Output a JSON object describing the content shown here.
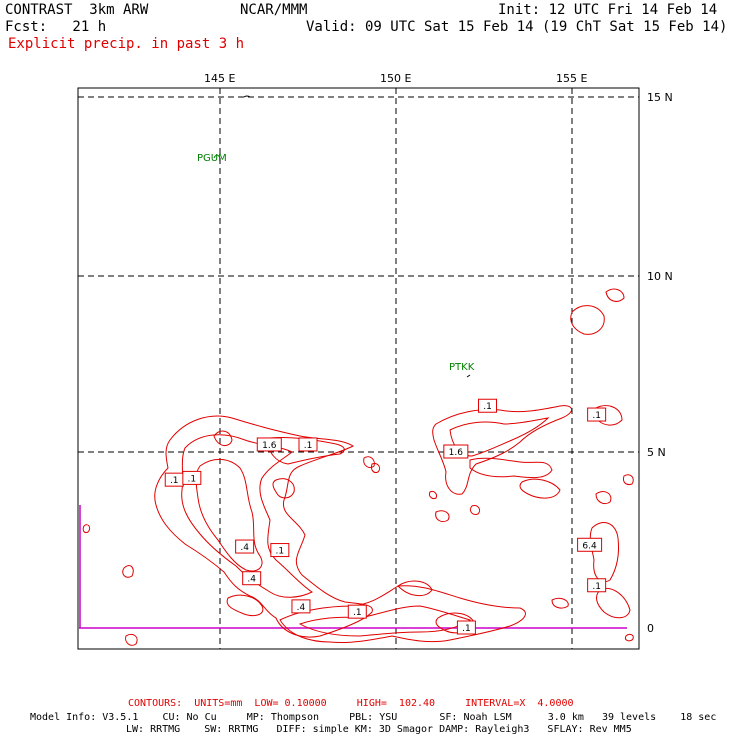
{
  "header": {
    "model": "CONTRAST  3km ARW",
    "center": "NCAR/MMM",
    "init": "Init: 12 UTC Fri 14 Feb 14",
    "fcst": "Fcst:   21 h",
    "valid": "Valid: 09 UTC Sat 15 Feb 14 (19 ChT Sat 15 Feb 14)",
    "field": "Explicit precip. in past 3 h"
  },
  "axes": {
    "lon_labels": [
      "145 E",
      "150 E",
      "155 E"
    ],
    "lat_labels": [
      "15 N",
      "10 N",
      "5 N",
      "0"
    ]
  },
  "stations": [
    "PGUM",
    "PTKK"
  ],
  "contour_labels": [
    {
      "text": "1.6",
      "lon": 146.4,
      "lat": 5.2
    },
    {
      "text": ".1",
      "lon": 147.5,
      "lat": 5.2
    },
    {
      "text": ".1",
      "lon": 143.7,
      "lat": 4.2
    },
    {
      "text": ".1",
      "lon": 144.2,
      "lat": 4.25
    },
    {
      "text": ".4",
      "lon": 145.7,
      "lat": 2.3
    },
    {
      "text": ".1",
      "lon": 146.7,
      "lat": 2.2
    },
    {
      "text": ".4",
      "lon": 145.9,
      "lat": 1.4
    },
    {
      "text": ".4",
      "lon": 147.3,
      "lat": 0.6
    },
    {
      "text": ".1",
      "lon": 148.9,
      "lat": 0.45
    },
    {
      "text": ".1",
      "lon": 152.6,
      "lat": 6.3
    },
    {
      "text": "1.6",
      "lon": 151.7,
      "lat": 5.0
    },
    {
      "text": ".1",
      "lon": 155.7,
      "lat": 6.05
    },
    {
      "text": "6.4",
      "lon": 155.5,
      "lat": 2.35
    },
    {
      "text": ".1",
      "lon": 155.7,
      "lat": 1.2
    },
    {
      "text": ".1",
      "lon": 152.0,
      "lat": 0.0
    }
  ],
  "footer": {
    "contours": "CONTOURS:  UNITS=mm  LOW= 0.10000     HIGH=  102.40     INTERVAL=X  4.0000",
    "line1": "Model Info: V3.5.1    CU: No Cu     MP: Thompson     PBL: YSU       SF: Noah LSM      3.0 km   39 levels    18 sec",
    "line2": "LW: RRTMG    SW: RRTMG   DIFF: simple KM: 3D Smagor DAMP: Rayleigh3   SFLAY: Rev MM5"
  },
  "colors": {
    "contour": "#e00000",
    "station": "#008000",
    "equator_line": "#cc00cc"
  }
}
